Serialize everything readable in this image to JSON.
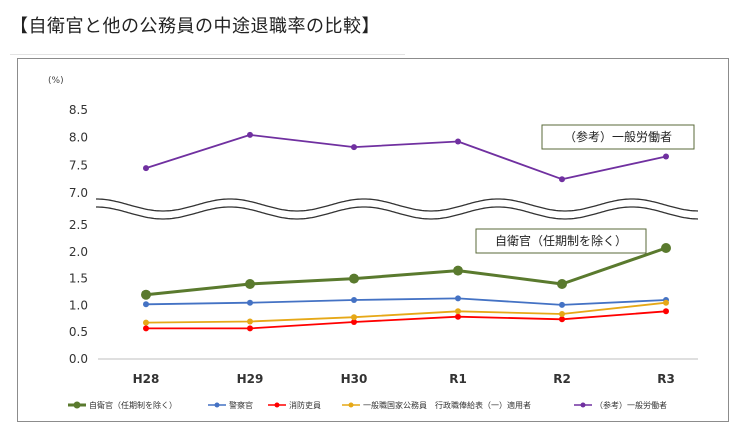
{
  "page_title": "【自衛官と他の公務員の中途退職率の比較】",
  "chart_data": {
    "type": "line",
    "unit_label": "(%)",
    "categories": [
      "H28",
      "H29",
      "H30",
      "R1",
      "R2",
      "R3"
    ],
    "upper_ticks": [
      "8.5",
      "8.0",
      "7.5",
      "7.0"
    ],
    "lower_ticks": [
      "2.5",
      "2.0",
      "1.5",
      "1.0",
      "0.5",
      "0.0"
    ],
    "axis_break": {
      "lower_range": [
        0,
        2.5
      ],
      "upper_range": [
        7.0,
        8.5
      ]
    },
    "grid": false,
    "legend_position": "bottom",
    "series": [
      {
        "name": "自衛官（任期制を除く）",
        "color": "#5a7a2e",
        "values": [
          1.2,
          1.4,
          1.5,
          1.65,
          1.4,
          2.07
        ],
        "bold": true
      },
      {
        "name": "警察官",
        "color": "#4472c4",
        "values": [
          1.02,
          1.05,
          1.1,
          1.13,
          1.01,
          1.1
        ]
      },
      {
        "name": "消防吏員",
        "color": "#ff0000",
        "values": [
          0.57,
          0.57,
          0.69,
          0.79,
          0.74,
          0.89
        ]
      },
      {
        "name": "一般職国家公務員　行政職俸給表（一）適用者",
        "color": "#e6a817",
        "values": [
          0.68,
          0.7,
          0.78,
          0.89,
          0.84,
          1.05
        ]
      },
      {
        "name": "（参考）一般労働者",
        "color": "#7030a0",
        "values": [
          7.45,
          8.05,
          7.83,
          7.93,
          7.25,
          7.66
        ]
      }
    ],
    "annotations": [
      {
        "text": "（参考）一般労働者",
        "series": 4
      },
      {
        "text": "自衛官（任期制を除く）",
        "series": 0
      }
    ]
  }
}
